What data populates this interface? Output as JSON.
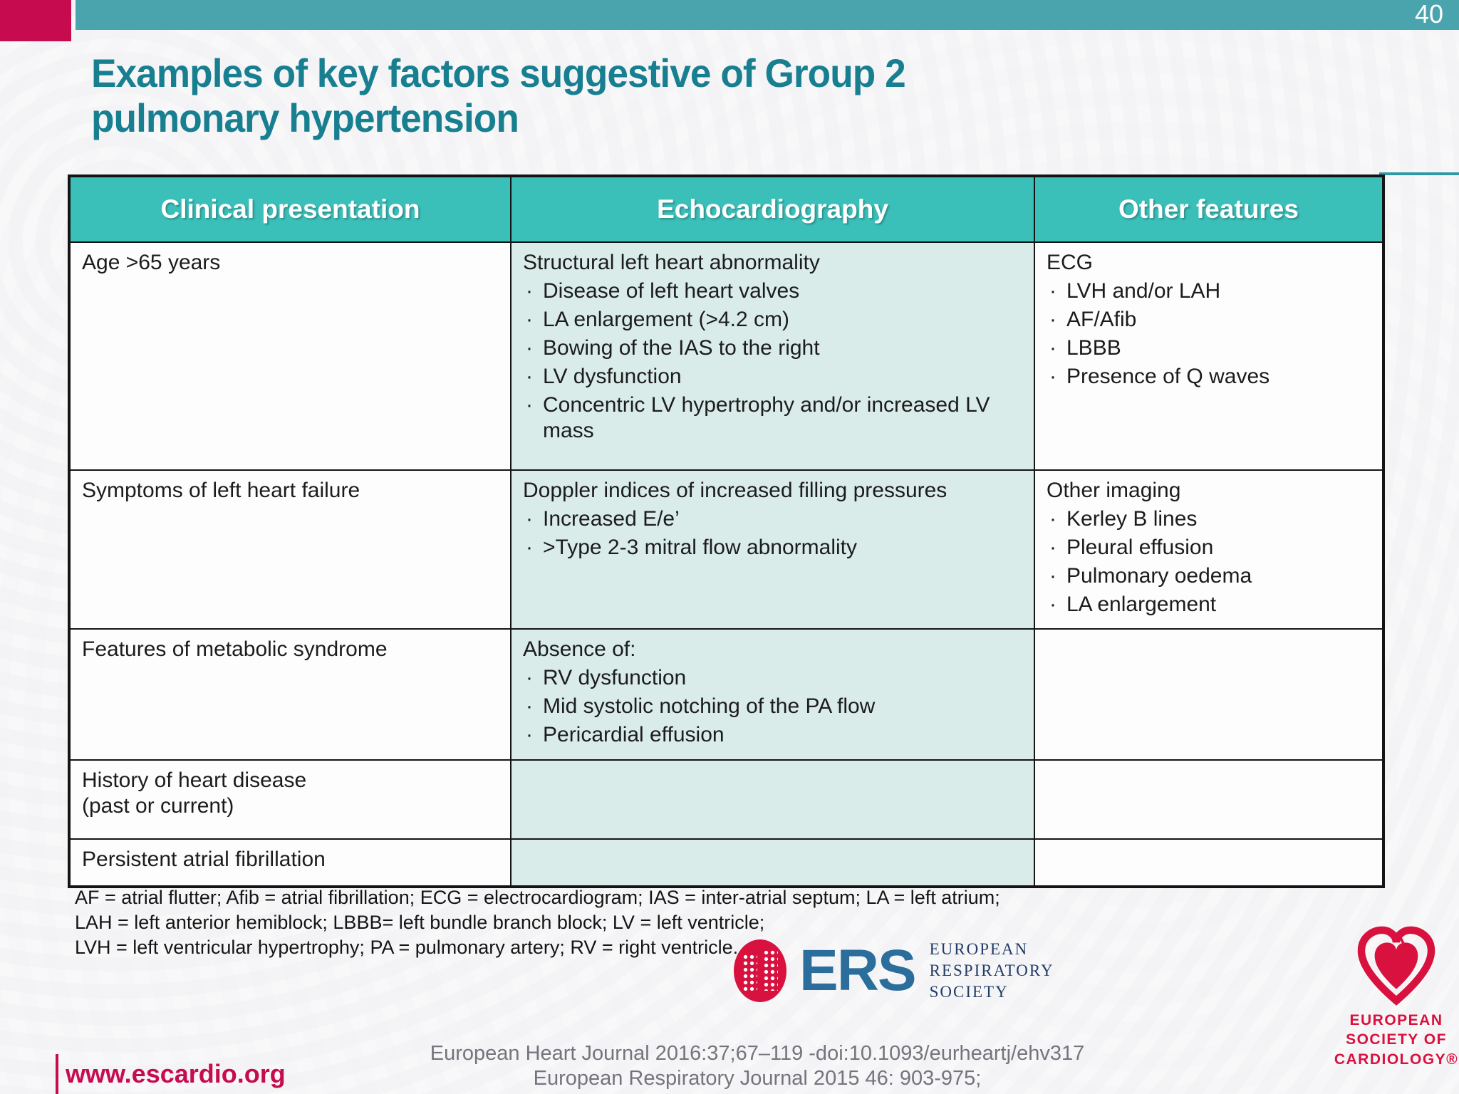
{
  "page_number": "40",
  "title": {
    "line1": "Examples of key factors suggestive of Group 2",
    "line2": "pulmonary hypertension"
  },
  "table": {
    "headers": [
      "Clinical presentation",
      "Echocardiography",
      "Other features"
    ],
    "rows": [
      {
        "clinical": "Age >65 years",
        "echo_lead": "Structural left heart abnormality",
        "echo_bullets": [
          "Disease of left heart valves",
          "LA enlargement (>4.2 cm)",
          "Bowing of the IAS to the right",
          "LV dysfunction",
          "Concentric LV hypertrophy and/or increased LV mass"
        ],
        "other_lead": "ECG",
        "other_bullets": [
          "LVH and/or LAH",
          "AF/Afib",
          "LBBB",
          "Presence of Q waves"
        ]
      },
      {
        "clinical": "Symptoms of left heart failure",
        "echo_lead": "Doppler indices of increased filling pressures",
        "echo_bullets": [
          "Increased E/e’",
          ">Type 2-3 mitral flow abnormality"
        ],
        "other_lead": "Other imaging",
        "other_bullets": [
          "Kerley B lines",
          "Pleural effusion",
          "Pulmonary oedema",
          "LA enlargement"
        ]
      },
      {
        "clinical": "Features of metabolic syndrome",
        "echo_lead": "Absence of:",
        "echo_bullets": [
          "RV dysfunction",
          "Mid systolic notching of the PA flow",
          "Pericardial effusion"
        ],
        "other_lead": "",
        "other_bullets": []
      },
      {
        "clinical": "History of heart disease\n(past or current)",
        "echo_lead": "",
        "echo_bullets": [],
        "other_lead": "",
        "other_bullets": []
      },
      {
        "clinical": "Persistent atrial fibrillation",
        "echo_lead": "",
        "echo_bullets": [],
        "other_lead": "",
        "other_bullets": []
      }
    ]
  },
  "footnote": [
    "AF = atrial flutter; Afib = atrial fibrillation; ECG = electrocardiogram; IAS = inter-atrial septum; LA = left atrium;",
    "LAH =  left anterior hemiblock; LBBB= left bundle branch block; LV = left ventricle;",
    "LVH = left ventricular hypertrophy; PA = pulmonary artery; RV = right ventricle."
  ],
  "footer": {
    "website": "www.escardio.org",
    "citation_line1": "European Heart Journal 2016:37;67–119 -doi:10.1093/eurheartj/ehv317",
    "citation_line2": "European Respiratory Journal 2015 46: 903-975;"
  },
  "logos": {
    "ers": {
      "abbr": "ERS",
      "name_lines": [
        "EUROPEAN",
        "RESPIRATORY",
        "SOCIETY"
      ]
    },
    "esc": {
      "name_lines": [
        "EUROPEAN",
        "SOCIETY OF",
        "CARDIOLOGY®"
      ]
    }
  },
  "colors": {
    "top_bar": "#4aa4ae",
    "accent_red": "#c60c4e",
    "title": "#187f91",
    "table_header_bg": "#3bbfb9",
    "echo_cell_bg": "#d9ece9",
    "citation_gray": "#74747c",
    "ers_blue": "#2b6e9c",
    "ers_navy": "#223c66",
    "heart_red": "#d8113e"
  }
}
